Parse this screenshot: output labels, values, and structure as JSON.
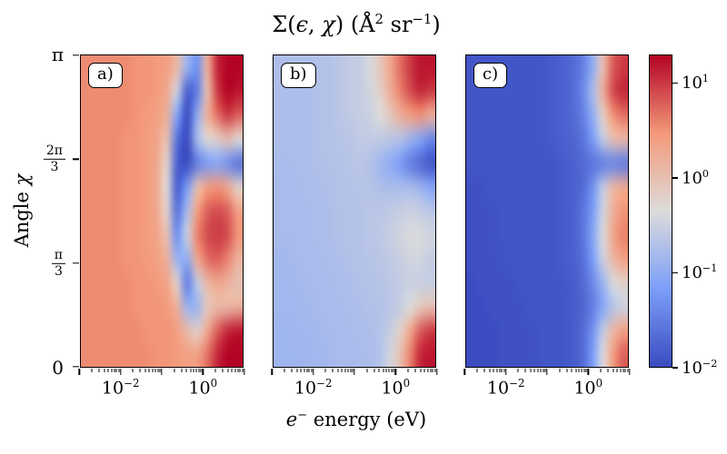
{
  "figure": {
    "title": {
      "sigma": "Σ(",
      "epsilon": "ϵ",
      "comma": ", ",
      "chi": "χ",
      "close": ")",
      "unit_open": " (Å",
      "unit_exp1": "2",
      "unit_sr": " sr",
      "unit_exp2": "−1",
      "unit_close": ")"
    },
    "xlabel": {
      "e": "e",
      "sup": "−",
      "rest": " energy (eV)"
    },
    "ylabel": {
      "prefix": "Angle ",
      "symbol": "χ"
    }
  },
  "axes": {
    "x_major_ticks": [
      {
        "base": "10",
        "exp": "−2",
        "u": 0.25
      },
      {
        "base": "10",
        "exp": "0",
        "u": 0.75
      }
    ],
    "y_ticks": [
      {
        "type": "plain",
        "label": "π",
        "frac": 1.0
      },
      {
        "type": "fraction",
        "num": "2π",
        "den": "3",
        "frac": 0.6667
      },
      {
        "type": "fraction",
        "num": "π",
        "den": "3",
        "frac": 0.3333
      },
      {
        "type": "plain",
        "label": "0",
        "frac": 0.0
      }
    ]
  },
  "colorbar": {
    "ticks": [
      {
        "base": "10",
        "exp": "1",
        "value": 1
      },
      {
        "base": "10",
        "exp": "0",
        "value": 0
      },
      {
        "base": "10",
        "exp": "−1",
        "value": -1
      },
      {
        "base": "10",
        "exp": "−2",
        "value": -2
      }
    ]
  },
  "chart_data": {
    "type": "heatmap",
    "title": "Σ(ϵ, χ) (Å² sr⁻¹)",
    "xlabel": "e⁻ energy (eV)",
    "ylabel": "Angle χ",
    "x_scale": "log",
    "x_range_log10": [
      -3,
      1
    ],
    "y_range": [
      0,
      3.14159
    ],
    "y_units": "rad",
    "value_scale": "log10",
    "scale": {
      "vmin_log": -2,
      "vmax_log": 1.3
    },
    "colormap": {
      "name": "coolwarm",
      "anchors": [
        {
          "t": 0.0,
          "rgb": [
            59,
            76,
            192
          ]
        },
        {
          "t": 0.25,
          "rgb": [
            124,
            159,
            249
          ]
        },
        {
          "t": 0.5,
          "rgb": [
            221,
            220,
            219
          ]
        },
        {
          "t": 0.75,
          "rgb": [
            244,
            154,
            123
          ]
        },
        {
          "t": 1.0,
          "rgb": [
            180,
            4,
            38
          ]
        }
      ]
    },
    "grid_note": "grid_log10 rows run from χ=π (top) to χ=0 (bottom); columns from ε=10^-3 eV (left) to 10^1 eV (right); values are log10 of Σ in Å²/sr",
    "panels": [
      {
        "label": "a)",
        "grid_log10": [
          [
            0.55,
            0.55,
            0.55,
            0.55,
            0.55,
            0.5,
            0.5,
            0.45,
            0.4,
            0.1,
            -0.9,
            -1.3,
            0.2,
            1.1,
            1.3,
            1.3
          ],
          [
            0.55,
            0.55,
            0.55,
            0.55,
            0.55,
            0.5,
            0.5,
            0.45,
            0.3,
            -0.5,
            -1.8,
            -1.5,
            0.0,
            1.0,
            1.3,
            1.2
          ],
          [
            0.55,
            0.55,
            0.55,
            0.55,
            0.55,
            0.5,
            0.45,
            0.4,
            0.2,
            -1.1,
            -2.0,
            -1.0,
            0.2,
            0.7,
            1.0,
            0.8
          ],
          [
            0.55,
            0.55,
            0.55,
            0.55,
            0.5,
            0.5,
            0.45,
            0.35,
            0.0,
            -1.6,
            -2.0,
            -0.8,
            -0.3,
            -0.2,
            0.0,
            -0.3
          ],
          [
            0.55,
            0.55,
            0.55,
            0.55,
            0.5,
            0.5,
            0.45,
            0.3,
            -0.2,
            -1.8,
            -2.0,
            -1.5,
            -1.2,
            -1.1,
            -1.3,
            -1.6
          ],
          [
            0.55,
            0.55,
            0.55,
            0.55,
            0.5,
            0.5,
            0.45,
            0.3,
            -0.3,
            -1.8,
            -1.2,
            0.0,
            0.4,
            0.5,
            0.3,
            -0.2
          ],
          [
            0.55,
            0.55,
            0.55,
            0.55,
            0.5,
            0.5,
            0.45,
            0.3,
            -0.2,
            -1.6,
            -0.8,
            0.4,
            0.8,
            0.9,
            0.8,
            0.4
          ],
          [
            0.55,
            0.55,
            0.55,
            0.55,
            0.5,
            0.5,
            0.45,
            0.35,
            0.0,
            -1.3,
            -0.5,
            0.6,
            0.9,
            1.0,
            0.9,
            0.5
          ],
          [
            0.55,
            0.55,
            0.55,
            0.55,
            0.5,
            0.5,
            0.45,
            0.4,
            0.2,
            -0.9,
            -1.0,
            0.3,
            0.7,
            0.8,
            0.6,
            0.2
          ],
          [
            0.55,
            0.55,
            0.55,
            0.55,
            0.55,
            0.5,
            0.5,
            0.45,
            0.35,
            -0.2,
            -1.5,
            -0.6,
            0.1,
            0.3,
            0.2,
            0.0
          ],
          [
            0.55,
            0.55,
            0.55,
            0.55,
            0.55,
            0.5,
            0.5,
            0.5,
            0.45,
            0.2,
            -0.9,
            -0.9,
            -0.1,
            0.1,
            0.1,
            0.2
          ],
          [
            0.55,
            0.55,
            0.55,
            0.55,
            0.55,
            0.55,
            0.5,
            0.5,
            0.5,
            0.4,
            0.1,
            -0.2,
            0.3,
            0.8,
            1.1,
            1.2
          ],
          [
            0.55,
            0.55,
            0.55,
            0.55,
            0.55,
            0.55,
            0.55,
            0.5,
            0.5,
            0.45,
            0.4,
            0.4,
            0.7,
            1.1,
            1.3,
            1.3
          ]
        ]
      },
      {
        "label": "b)",
        "grid_log10": [
          [
            -0.75,
            -0.75,
            -0.75,
            -0.75,
            -0.72,
            -0.7,
            -0.65,
            -0.6,
            -0.55,
            -0.4,
            -0.1,
            0.3,
            0.7,
            1.0,
            1.2,
            1.2
          ],
          [
            -0.75,
            -0.75,
            -0.75,
            -0.75,
            -0.72,
            -0.7,
            -0.65,
            -0.6,
            -0.55,
            -0.45,
            -0.2,
            0.2,
            0.6,
            0.9,
            1.1,
            1.0
          ],
          [
            -0.75,
            -0.75,
            -0.75,
            -0.75,
            -0.72,
            -0.7,
            -0.65,
            -0.6,
            -0.55,
            -0.5,
            -0.35,
            -0.1,
            0.2,
            0.4,
            0.5,
            0.2
          ],
          [
            -0.75,
            -0.75,
            -0.75,
            -0.75,
            -0.72,
            -0.7,
            -0.68,
            -0.65,
            -0.6,
            -0.6,
            -0.6,
            -0.65,
            -0.7,
            -0.9,
            -1.1,
            -1.4
          ],
          [
            -0.78,
            -0.78,
            -0.75,
            -0.75,
            -0.73,
            -0.72,
            -0.7,
            -0.68,
            -0.65,
            -0.7,
            -0.85,
            -1.0,
            -1.2,
            -1.5,
            -1.7,
            -1.9
          ],
          [
            -0.8,
            -0.8,
            -0.78,
            -0.75,
            -0.75,
            -0.73,
            -0.7,
            -0.7,
            -0.68,
            -0.68,
            -0.75,
            -0.78,
            -0.78,
            -0.8,
            -0.9,
            -1.1
          ],
          [
            -0.8,
            -0.8,
            -0.78,
            -0.78,
            -0.75,
            -0.75,
            -0.72,
            -0.7,
            -0.7,
            -0.65,
            -0.65,
            -0.6,
            -0.55,
            -0.5,
            -0.55,
            -0.65
          ],
          [
            -0.8,
            -0.8,
            -0.8,
            -0.78,
            -0.75,
            -0.75,
            -0.72,
            -0.7,
            -0.7,
            -0.65,
            -0.62,
            -0.55,
            -0.45,
            -0.38,
            -0.38,
            -0.45
          ],
          [
            -0.85,
            -0.82,
            -0.8,
            -0.8,
            -0.78,
            -0.75,
            -0.75,
            -0.72,
            -0.7,
            -0.68,
            -0.65,
            -0.6,
            -0.52,
            -0.45,
            -0.45,
            -0.55
          ],
          [
            -0.85,
            -0.85,
            -0.82,
            -0.8,
            -0.8,
            -0.78,
            -0.75,
            -0.75,
            -0.72,
            -0.7,
            -0.68,
            -0.63,
            -0.58,
            -0.52,
            -0.52,
            -0.55
          ],
          [
            -0.85,
            -0.85,
            -0.85,
            -0.82,
            -0.8,
            -0.8,
            -0.78,
            -0.75,
            -0.75,
            -0.72,
            -0.7,
            -0.65,
            -0.55,
            -0.35,
            -0.1,
            0.0
          ],
          [
            -0.88,
            -0.88,
            -0.85,
            -0.85,
            -0.82,
            -0.8,
            -0.8,
            -0.78,
            -0.75,
            -0.75,
            -0.7,
            -0.55,
            -0.2,
            0.3,
            0.8,
            1.0
          ],
          [
            -0.88,
            -0.88,
            -0.88,
            -0.85,
            -0.85,
            -0.82,
            -0.8,
            -0.8,
            -0.78,
            -0.75,
            -0.7,
            -0.45,
            0.0,
            0.6,
            1.1,
            1.2
          ]
        ]
      },
      {
        "label": "c)",
        "grid_log10": [
          [
            -1.9,
            -1.9,
            -1.9,
            -1.9,
            -1.9,
            -1.9,
            -1.9,
            -1.9,
            -1.85,
            -1.8,
            -1.7,
            -1.5,
            -1.0,
            0.0,
            0.8,
            1.0
          ],
          [
            -1.9,
            -1.9,
            -1.9,
            -1.9,
            -1.9,
            -1.9,
            -1.9,
            -1.9,
            -1.85,
            -1.8,
            -1.7,
            -1.4,
            -0.8,
            0.2,
            0.9,
            1.1
          ],
          [
            -1.9,
            -1.9,
            -1.9,
            -1.9,
            -1.9,
            -1.9,
            -1.9,
            -1.9,
            -1.85,
            -1.8,
            -1.7,
            -1.5,
            -1.0,
            -0.2,
            0.5,
            0.7
          ],
          [
            -1.9,
            -1.9,
            -1.9,
            -1.9,
            -1.9,
            -1.9,
            -1.9,
            -1.9,
            -1.85,
            -1.8,
            -1.75,
            -1.6,
            -1.2,
            -0.6,
            0.0,
            0.1
          ],
          [
            -1.9,
            -1.9,
            -1.9,
            -1.9,
            -1.9,
            -1.9,
            -1.9,
            -1.9,
            -1.9,
            -1.85,
            -1.8,
            -1.7,
            -1.6,
            -1.5,
            -1.4,
            -1.5
          ],
          [
            -1.95,
            -1.95,
            -1.9,
            -1.9,
            -1.9,
            -1.9,
            -1.9,
            -1.9,
            -1.9,
            -1.85,
            -1.8,
            -1.7,
            -1.3,
            -0.6,
            0.1,
            0.3
          ],
          [
            -1.95,
            -1.95,
            -1.95,
            -1.9,
            -1.9,
            -1.9,
            -1.9,
            -1.9,
            -1.9,
            -1.85,
            -1.8,
            -1.6,
            -1.2,
            -0.5,
            0.2,
            0.5
          ],
          [
            -1.95,
            -1.95,
            -1.95,
            -1.9,
            -1.9,
            -1.9,
            -1.9,
            -1.9,
            -1.9,
            -1.85,
            -1.8,
            -1.6,
            -1.1,
            -0.4,
            0.3,
            0.6
          ],
          [
            -1.95,
            -1.95,
            -1.95,
            -1.95,
            -1.9,
            -1.9,
            -1.9,
            -1.9,
            -1.9,
            -1.85,
            -1.8,
            -1.65,
            -1.2,
            -0.5,
            0.1,
            0.4
          ],
          [
            -2.0,
            -1.95,
            -1.95,
            -1.95,
            -1.95,
            -1.9,
            -1.9,
            -1.9,
            -1.9,
            -1.9,
            -1.85,
            -1.7,
            -1.4,
            -0.9,
            -0.4,
            -0.2
          ],
          [
            -2.0,
            -2.0,
            -1.95,
            -1.95,
            -1.95,
            -1.95,
            -1.9,
            -1.9,
            -1.9,
            -1.9,
            -1.85,
            -1.75,
            -1.5,
            -1.1,
            -0.7,
            -0.5
          ],
          [
            -2.0,
            -2.0,
            -2.0,
            -1.95,
            -1.95,
            -1.95,
            -1.95,
            -1.9,
            -1.9,
            -1.9,
            -1.85,
            -1.7,
            -1.3,
            -0.6,
            0.1,
            0.4
          ],
          [
            -2.0,
            -2.0,
            -2.0,
            -1.95,
            -1.95,
            -1.95,
            -1.95,
            -1.9,
            -1.9,
            -1.9,
            -1.85,
            -1.7,
            -1.2,
            -0.4,
            0.4,
            0.8
          ]
        ]
      }
    ],
    "colorbar_range_log10": [
      -2,
      1.3
    ],
    "legend_position": "right-colorbar",
    "grid_lines": "off"
  }
}
